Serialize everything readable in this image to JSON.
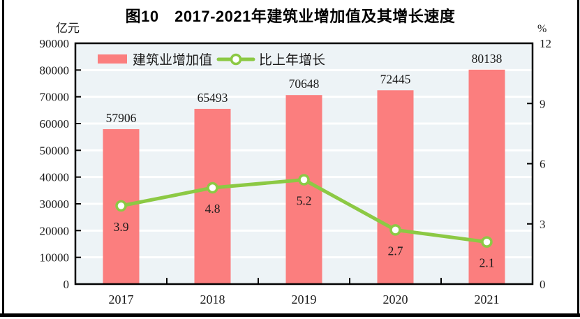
{
  "title": "图10　2017-2021年建筑业增加值及其增长速度",
  "chart_data": {
    "type": "bar",
    "title": "图10　2017-2021年建筑业增加值及其增长速度",
    "categories": [
      "2017",
      "2018",
      "2019",
      "2020",
      "2021"
    ],
    "series": [
      {
        "name": "建筑业增加值",
        "type": "bar",
        "axis": "left",
        "color": "#FB7E7E",
        "values": [
          57906,
          65493,
          70648,
          72445,
          80138
        ],
        "value_labels": [
          "57906",
          "65493",
          "70648",
          "72445",
          "80138"
        ]
      },
      {
        "name": "比上年增长",
        "type": "line",
        "axis": "right",
        "color": "#8CC944",
        "marker_fill": "#FFFFFF",
        "values": [
          3.9,
          4.8,
          5.2,
          2.7,
          2.1
        ],
        "value_labels": [
          "3.9",
          "4.8",
          "5.2",
          "2.7",
          "2.1"
        ]
      }
    ],
    "left_axis": {
      "unit": "亿元",
      "min": 0,
      "max": 90000,
      "step": 10000,
      "tick_labels": [
        "0",
        "10000",
        "20000",
        "30000",
        "40000",
        "50000",
        "60000",
        "70000",
        "80000",
        "90000"
      ]
    },
    "right_axis": {
      "unit": "%",
      "min": 0,
      "max": 12,
      "step": 3,
      "tick_labels": [
        "0",
        "3",
        "6",
        "9",
        "12"
      ]
    },
    "legend_position": "top-left-inside",
    "grid": true,
    "plot_bg": "#EDF3F6",
    "grid_color": "#FFFFFF",
    "frame_color": "#000000",
    "text_color": "#1a1a1a"
  }
}
